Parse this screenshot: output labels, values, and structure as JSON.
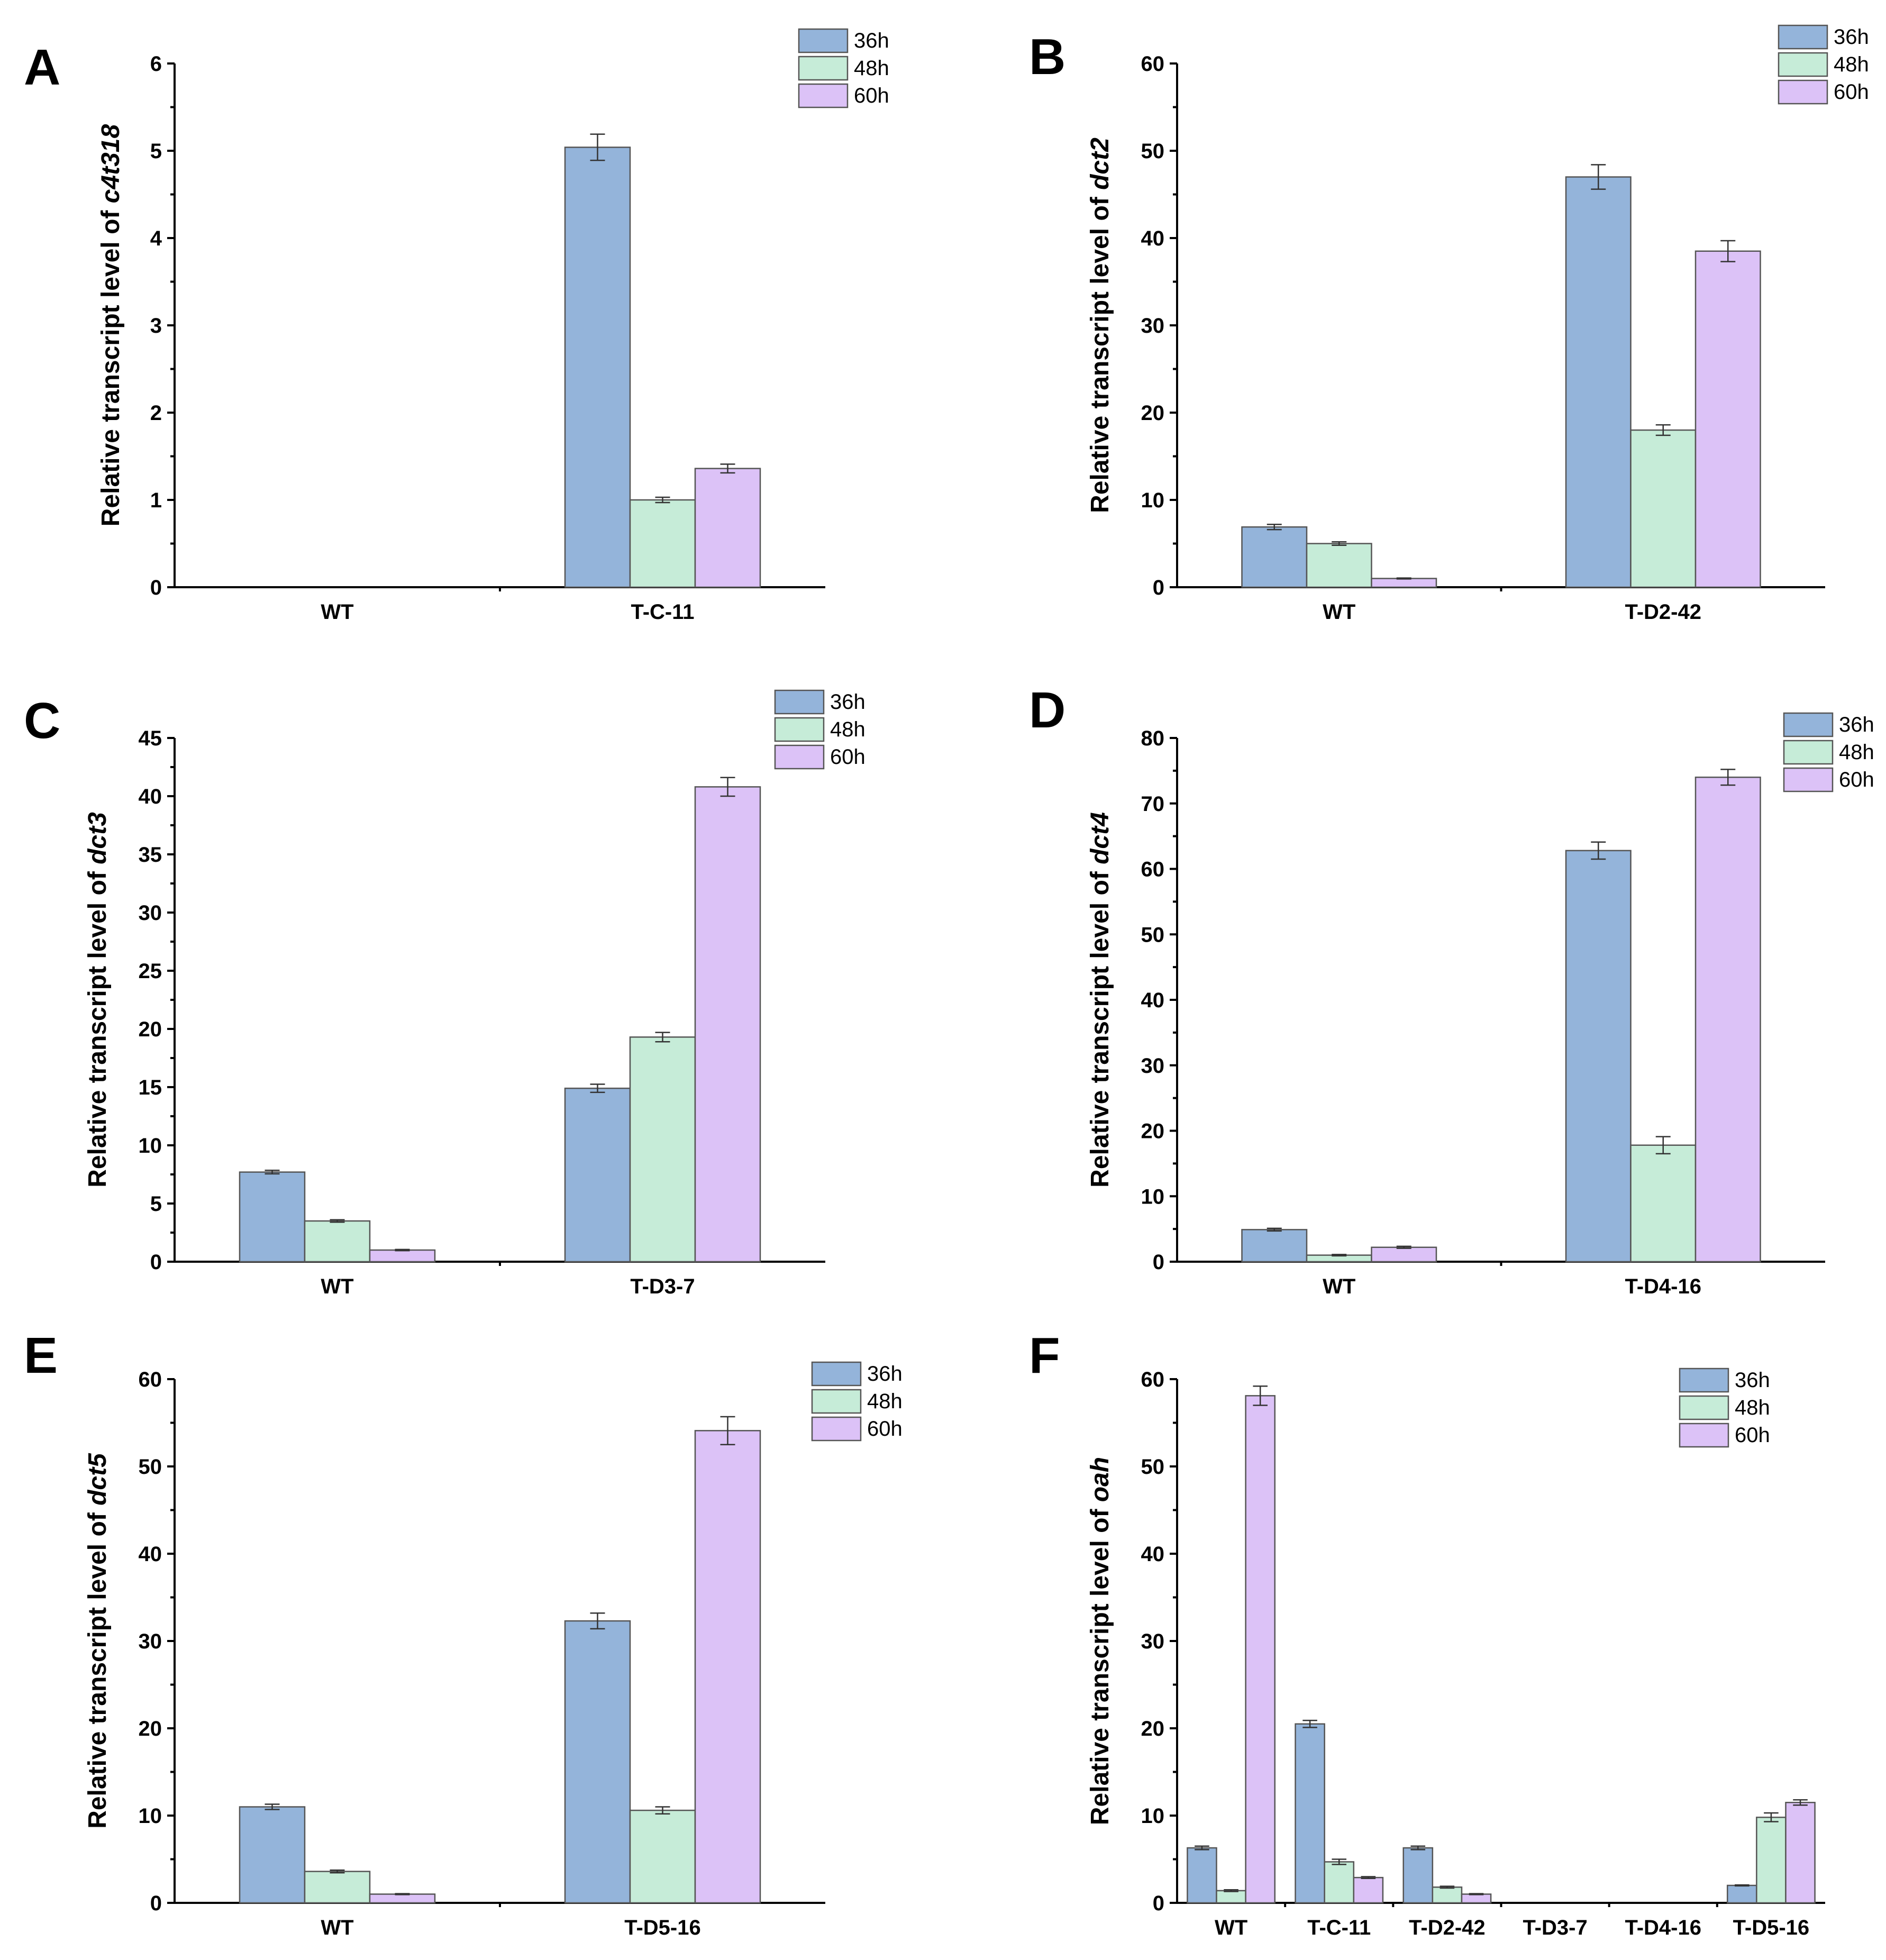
{
  "figure": {
    "y_title_prefix": "Relative transcript level of "
  },
  "colors": {
    "36h": "#94b4da",
    "48h": "#c6ecd8",
    "60h": "#dcc2f7"
  },
  "chart_data": [
    {
      "panel": "A",
      "type": "bar",
      "gene": "c4t318",
      "ylabel": "Relative transcript level of c4t318",
      "xlabel": "",
      "ylim": [
        0,
        6
      ],
      "yticks": [
        0,
        1,
        2,
        3,
        4,
        5,
        6
      ],
      "categories": [
        "WT",
        "T-C-11"
      ],
      "series": [
        {
          "name": "36h",
          "values": [
            0,
            5.04
          ],
          "errors": [
            0,
            0.15
          ]
        },
        {
          "name": "48h",
          "values": [
            0,
            1.0
          ],
          "errors": [
            0,
            0.03
          ]
        },
        {
          "name": "60h",
          "values": [
            0,
            1.36
          ],
          "errors": [
            0,
            0.05
          ]
        }
      ],
      "legend": [
        "36h",
        "48h",
        "60h"
      ],
      "legend_position": "top-right"
    },
    {
      "panel": "B",
      "type": "bar",
      "gene": "dct2",
      "ylabel": "Relative transcript level of dct2",
      "xlabel": "",
      "ylim": [
        0,
        60
      ],
      "yticks": [
        0,
        10,
        20,
        30,
        40,
        50,
        60
      ],
      "categories": [
        "WT",
        "T-D2-42"
      ],
      "series": [
        {
          "name": "36h",
          "values": [
            6.9,
            47.0
          ],
          "errors": [
            0.3,
            1.4
          ]
        },
        {
          "name": "48h",
          "values": [
            5.0,
            18.0
          ],
          "errors": [
            0.2,
            0.6
          ]
        },
        {
          "name": "60h",
          "values": [
            1.0,
            38.5
          ],
          "errors": [
            0.05,
            1.2
          ]
        }
      ],
      "legend": [
        "36h",
        "48h",
        "60h"
      ],
      "legend_position": "top-right"
    },
    {
      "panel": "C",
      "type": "bar",
      "gene": "dct3",
      "ylabel": "Relative transcript level of dct3",
      "xlabel": "",
      "ylim": [
        0,
        45
      ],
      "yticks": [
        0,
        5,
        10,
        15,
        20,
        25,
        30,
        35,
        40,
        45
      ],
      "categories": [
        "WT",
        "T-D3-7"
      ],
      "series": [
        {
          "name": "36h",
          "values": [
            7.7,
            14.9
          ],
          "errors": [
            0.15,
            0.35
          ]
        },
        {
          "name": "48h",
          "values": [
            3.5,
            19.3
          ],
          "errors": [
            0.1,
            0.4
          ]
        },
        {
          "name": "60h",
          "values": [
            1.0,
            40.8
          ],
          "errors": [
            0.05,
            0.8
          ]
        }
      ],
      "legend": [
        "36h",
        "48h",
        "60h"
      ],
      "legend_position": "top-right"
    },
    {
      "panel": "D",
      "type": "bar",
      "gene": "dct4",
      "ylabel": "Relative transcript level of dct4",
      "xlabel": "",
      "ylim": [
        0,
        80
      ],
      "yticks": [
        0,
        10,
        20,
        30,
        40,
        50,
        60,
        70,
        80
      ],
      "categories": [
        "WT",
        "T-D4-16"
      ],
      "series": [
        {
          "name": "36h",
          "values": [
            4.9,
            62.8
          ],
          "errors": [
            0.2,
            1.3
          ]
        },
        {
          "name": "48h",
          "values": [
            1.0,
            17.8
          ],
          "errors": [
            0.1,
            1.3
          ]
        },
        {
          "name": "60h",
          "values": [
            2.2,
            74.0
          ],
          "errors": [
            0.15,
            1.2
          ]
        }
      ],
      "legend": [
        "36h",
        "48h",
        "60h"
      ],
      "legend_position": "top-right"
    },
    {
      "panel": "E",
      "type": "bar",
      "gene": "dct5",
      "ylabel": "Relative transcript level of dct5",
      "xlabel": "",
      "ylim": [
        0,
        60
      ],
      "yticks": [
        0,
        10,
        20,
        30,
        40,
        50,
        60
      ],
      "categories": [
        "WT",
        "T-D5-16"
      ],
      "series": [
        {
          "name": "36h",
          "values": [
            11.0,
            32.3
          ],
          "errors": [
            0.3,
            0.9
          ]
        },
        {
          "name": "48h",
          "values": [
            3.6,
            10.6
          ],
          "errors": [
            0.15,
            0.4
          ]
        },
        {
          "name": "60h",
          "values": [
            1.0,
            54.1
          ],
          "errors": [
            0.05,
            1.6
          ]
        }
      ],
      "legend": [
        "36h",
        "48h",
        "60h"
      ],
      "legend_position": "top-right"
    },
    {
      "panel": "F",
      "type": "bar",
      "gene": "oah",
      "ylabel": "Relative transcript level of oah",
      "xlabel": "",
      "ylim": [
        0,
        60
      ],
      "yticks": [
        0,
        10,
        20,
        30,
        40,
        50,
        60
      ],
      "categories": [
        "WT",
        "T-C-11",
        "T-D2-42",
        "T-D3-7",
        "T-D4-16",
        "T-D5-16"
      ],
      "series": [
        {
          "name": "36h",
          "values": [
            6.3,
            20.5,
            6.3,
            0,
            0,
            2.0
          ],
          "errors": [
            0.2,
            0.4,
            0.2,
            0,
            0,
            0.05
          ]
        },
        {
          "name": "48h",
          "values": [
            1.4,
            4.7,
            1.8,
            0,
            0,
            9.8
          ],
          "errors": [
            0.1,
            0.3,
            0.1,
            0,
            0,
            0.5
          ]
        },
        {
          "name": "60h",
          "values": [
            58.1,
            2.9,
            1.0,
            0,
            0,
            11.5
          ],
          "errors": [
            1.1,
            0.1,
            0.05,
            0,
            0,
            0.3
          ]
        }
      ],
      "legend": [
        "36h",
        "48h",
        "60h"
      ],
      "legend_position": "top-right"
    }
  ]
}
